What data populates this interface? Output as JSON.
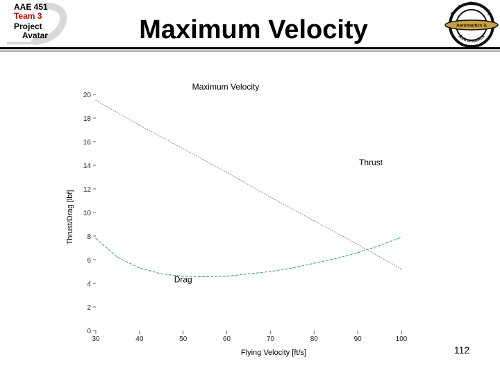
{
  "header": {
    "logo_left_lines": [
      "AAE 451",
      "Team 3",
      "Project",
      "Avatar"
    ],
    "title": "Maximum Velocity",
    "logo_right_text_top": "Purdue University",
    "logo_right_text_middle": "Aeronautics &",
    "logo_right_text_bottom": "Astronautics"
  },
  "colors": {
    "accent_red": "#c00000",
    "thrust_line": "#8c8c8c",
    "drag_line": "#3b9a5a",
    "logo_ring": "#111111",
    "logo_gold": "#c8a040"
  },
  "chart_data": {
    "type": "line",
    "title": "Maximum Velocity",
    "xlabel": "Flying Velocity [ft/s]",
    "ylabel": "Thrust/Drag [lbf]",
    "xlim": [
      30,
      100
    ],
    "ylim": [
      0,
      20
    ],
    "xticks": [
      30,
      40,
      50,
      60,
      70,
      80,
      90,
      100
    ],
    "yticks": [
      0,
      2,
      4,
      6,
      8,
      10,
      12,
      14,
      16,
      18,
      20
    ],
    "grid": false,
    "series": [
      {
        "name": "Thrust",
        "x": [
          30,
          40,
          50,
          60,
          70,
          80,
          90,
          100
        ],
        "values": [
          19.5,
          17.4,
          15.4,
          13.4,
          11.3,
          9.3,
          7.3,
          5.2
        ]
      },
      {
        "name": "Drag",
        "x": [
          30,
          35,
          40,
          45,
          50,
          55,
          60,
          65,
          70,
          75,
          80,
          85,
          90,
          95,
          100
        ],
        "values": [
          7.8,
          6.2,
          5.3,
          4.8,
          4.6,
          4.55,
          4.6,
          4.8,
          5.0,
          5.3,
          5.7,
          6.1,
          6.6,
          7.2,
          7.9
        ]
      }
    ],
    "annotations": [
      {
        "text": "Thrust",
        "x": 93,
        "y": 14
      },
      {
        "text": "Drag",
        "x": 50,
        "y": 4.1
      }
    ]
  },
  "footer": {
    "slide_number": "112"
  }
}
